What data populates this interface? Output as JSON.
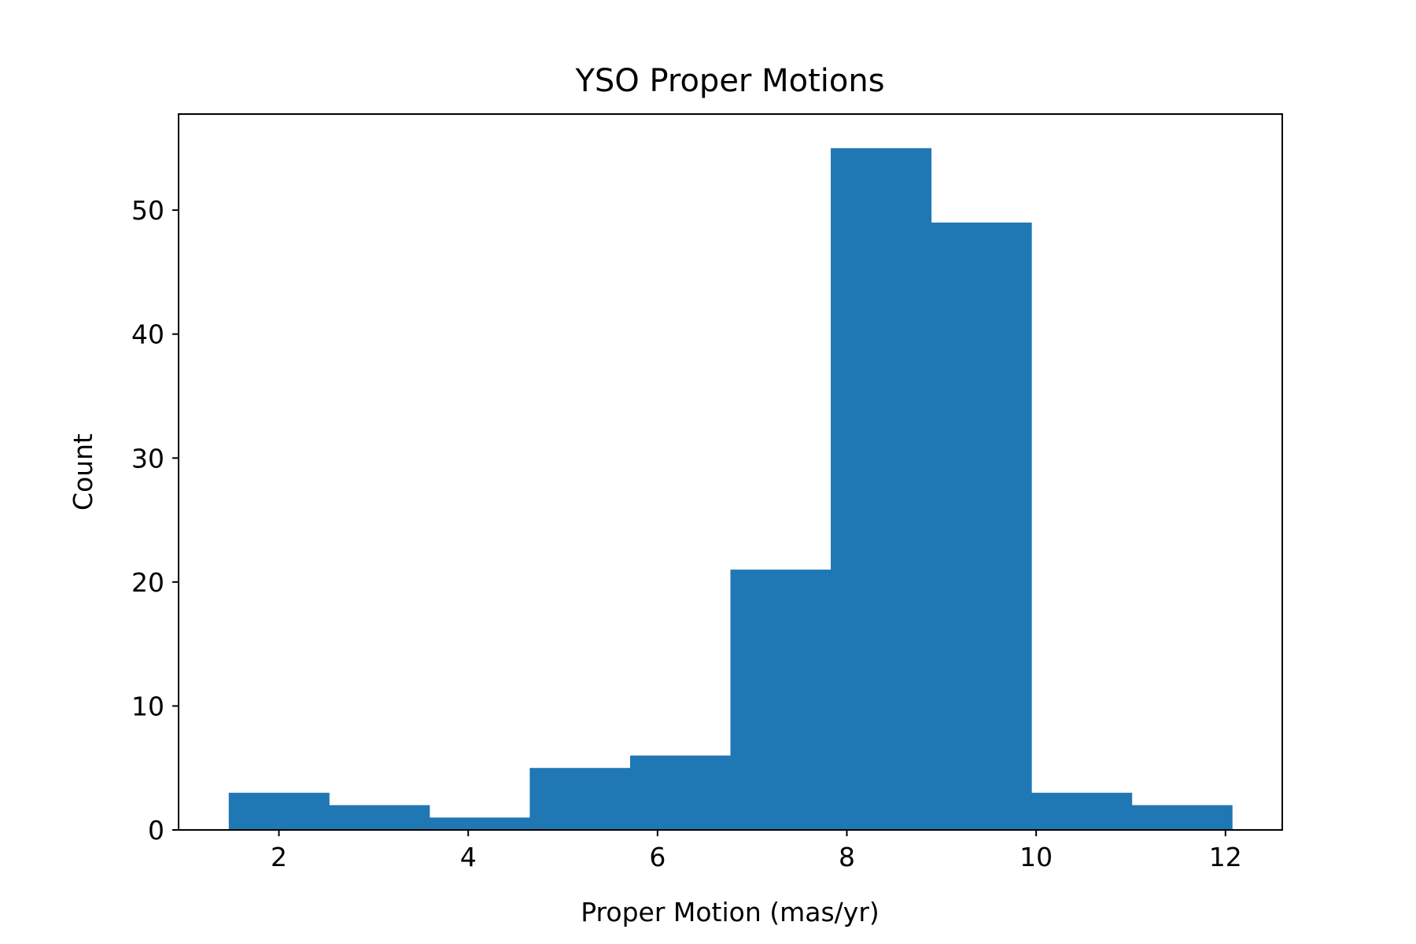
{
  "chart_data": {
    "type": "bar",
    "title": "YSO Proper Motions",
    "xlabel": "Proper Motion (mas/yr)",
    "ylabel": "Count",
    "bin_edges": [
      1.47,
      2.53,
      3.59,
      4.65,
      5.71,
      6.77,
      7.83,
      8.89,
      9.95,
      11.01,
      12.07
    ],
    "values": [
      3,
      2,
      1,
      5,
      6,
      21,
      55,
      49,
      3,
      2
    ],
    "xlim": [
      0.94,
      12.6
    ],
    "ylim": [
      0,
      57.75
    ],
    "xticks": [
      2,
      4,
      6,
      8,
      10,
      12
    ],
    "xtick_labels": [
      "2",
      "4",
      "6",
      "8",
      "10",
      "12"
    ],
    "yticks": [
      0,
      10,
      20,
      30,
      40,
      50
    ],
    "ytick_labels": [
      "0",
      "10",
      "20",
      "30",
      "40",
      "50"
    ],
    "grid": false,
    "bar_color": "#1f77b4"
  }
}
